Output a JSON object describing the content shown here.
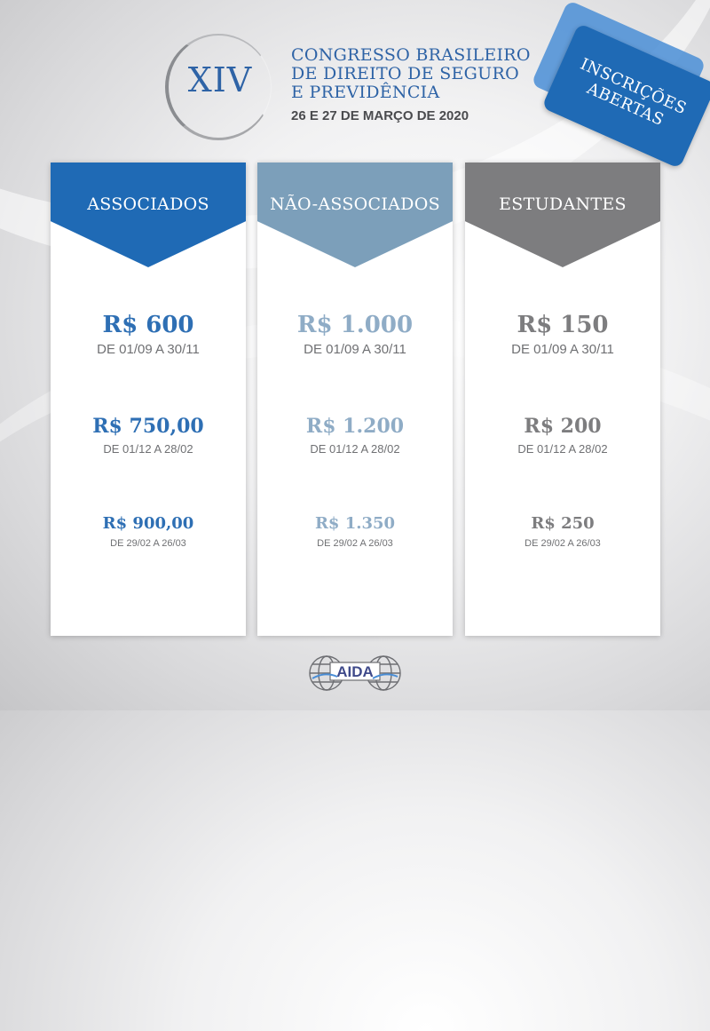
{
  "header": {
    "edition": "XIV",
    "title_lines": [
      "CONGRESSO BRASILEIRO",
      "DE DIREITO DE SEGURO",
      "E PREVIDÊNCIA"
    ],
    "date": "26 E 27 DE MARÇO DE 2020"
  },
  "badge": {
    "lines": [
      "INSCRIÇÕES",
      "ABERTAS"
    ]
  },
  "columns": [
    {
      "label": "ASSOCIADOS",
      "tiers": [
        {
          "price": "R$ 600",
          "range": "DE 01/09 A 30/11"
        },
        {
          "price": "R$ 750,00",
          "range": "DE 01/12 A 28/02"
        },
        {
          "price": "R$ 900,00",
          "range": "DE 29/02 A 26/03"
        }
      ]
    },
    {
      "label": "NÃO-ASSOCIADOS",
      "tiers": [
        {
          "price": "R$ 1.000",
          "range": "DE 01/09 A 30/11"
        },
        {
          "price": "R$ 1.200",
          "range": "DE 01/12 A 28/02"
        },
        {
          "price": "R$ 1.350",
          "range": "DE 29/02 A 26/03"
        }
      ]
    },
    {
      "label": "ESTUDANTES",
      "tiers": [
        {
          "price": "R$ 150",
          "range": "DE 01/09 A 30/11"
        },
        {
          "price": "R$ 200",
          "range": "DE 01/12 A 28/02"
        },
        {
          "price": "R$ 250",
          "range": "DE 29/02 A 26/03"
        }
      ]
    }
  ],
  "colors": {
    "associados": "#1f6ab5",
    "nao_associados": "#7c9fba",
    "estudantes": "#7d7d7f"
  },
  "logo": {
    "text": "AIDA",
    "icon": "globe-icon"
  }
}
